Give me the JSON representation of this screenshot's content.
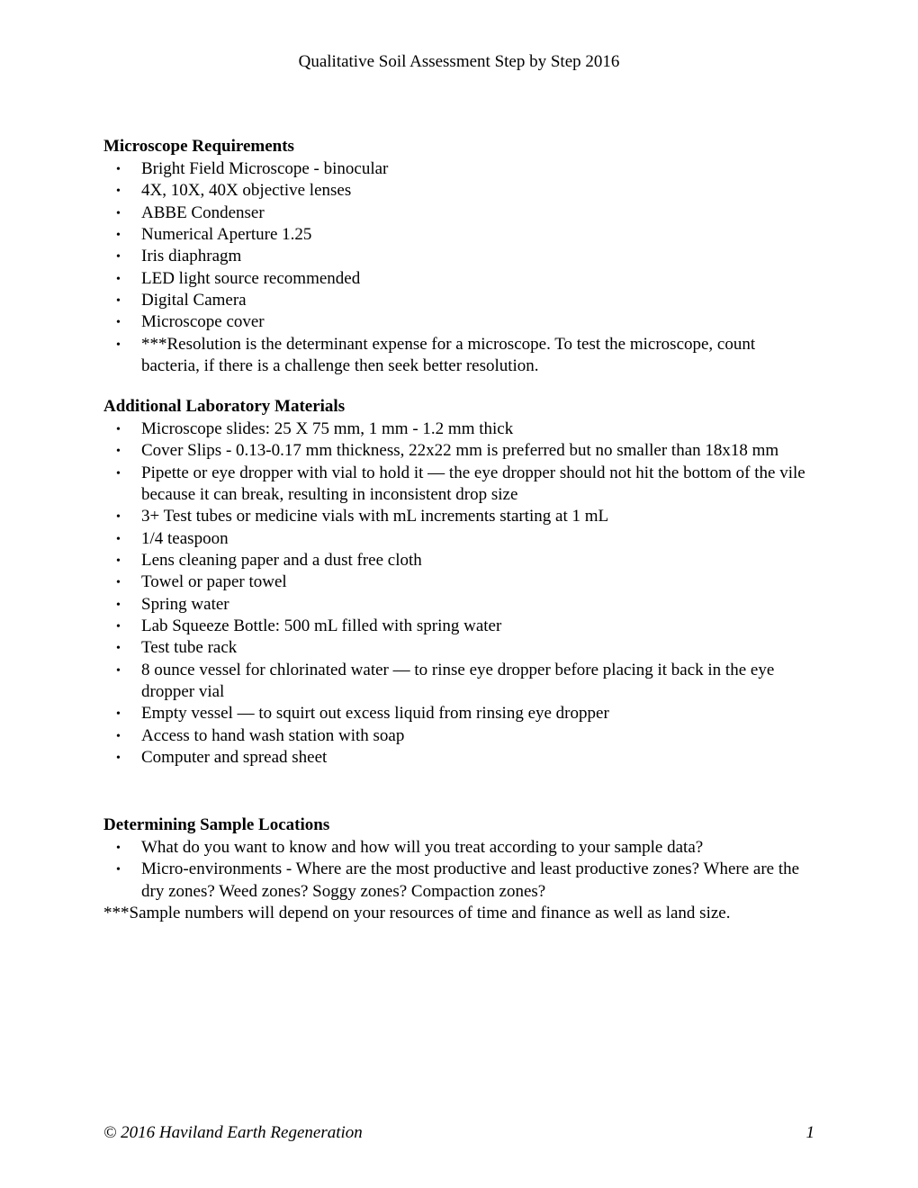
{
  "header": {
    "title": "Qualitative Soil Assessment Step by Step 2016"
  },
  "sections": {
    "microscope": {
      "heading": "Microscope Requirements",
      "items": [
        "Bright Field Microscope - binocular",
        "4X, 10X, 40X objective lenses",
        "ABBE Condenser",
        "Numerical Aperture 1.25",
        "Iris diaphragm",
        "LED light source recommended",
        "Digital Camera",
        "Microscope cover",
        "***Resolution is the determinant expense for a microscope.  To test the microscope, count bacteria, if there is a challenge then seek better resolution."
      ]
    },
    "materials": {
      "heading": "Additional Laboratory Materials",
      "items": [
        "Microscope slides: 25 X 75 mm, 1 mm - 1.2 mm thick",
        "Cover Slips - 0.13-0.17 mm thickness, 22x22 mm is preferred but no smaller than 18x18 mm",
        "Pipette or eye dropper with vial to hold it — the eye dropper should not hit the bottom of the vile because it can break, resulting in inconsistent drop size",
        "3+ Test tubes or medicine vials with mL increments starting at 1 mL",
        "1/4 teaspoon",
        "Lens cleaning paper and a dust free cloth",
        "Towel or paper towel",
        "Spring water",
        "Lab Squeeze Bottle: 500 mL filled with spring water",
        "Test tube rack",
        "8 ounce vessel for chlorinated water — to rinse eye dropper before placing it back in the eye dropper vial",
        "Empty vessel — to squirt out excess liquid from rinsing eye dropper",
        "Access to hand wash station with soap",
        "Computer and spread sheet"
      ]
    },
    "locations": {
      "heading": "Determining Sample Locations",
      "items": [
        "What do you want to know and how will you treat according to your sample data?",
        "Micro-environments - Where are the most productive and least  productive zones? Where are the dry zones? Weed zones? Soggy zones? Compaction zones?"
      ],
      "note": "***Sample numbers will depend on your resources of time and finance as well as land size."
    }
  },
  "footer": {
    "copyright": "© 2016 Haviland Earth Regeneration",
    "page": "1"
  }
}
